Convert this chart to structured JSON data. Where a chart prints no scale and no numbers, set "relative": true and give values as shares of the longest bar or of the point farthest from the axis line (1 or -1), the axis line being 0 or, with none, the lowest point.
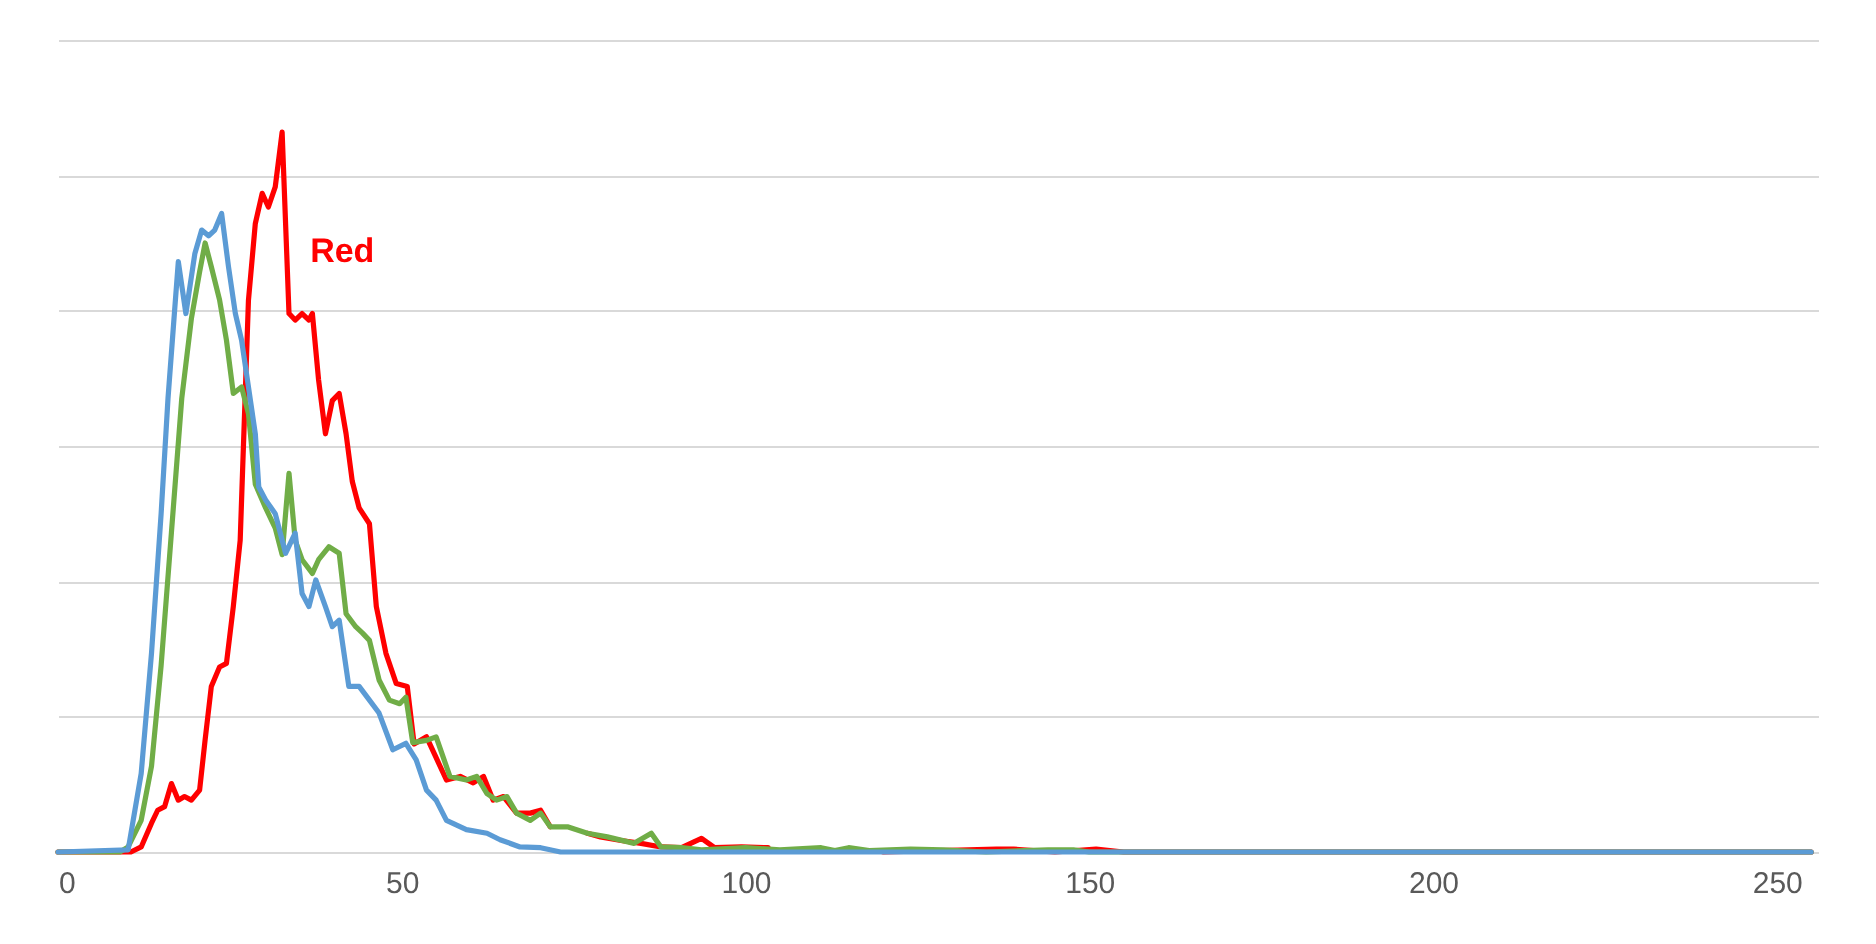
{
  "chart_data": {
    "type": "line",
    "relative": true,
    "xlim": [
      0,
      256
    ],
    "xticks": [
      0,
      50,
      100,
      150,
      200,
      250
    ],
    "grid": "y",
    "line_style": "solid",
    "marker": "none",
    "series": [
      {
        "name": "Red",
        "color": "#ff0000",
        "x": [
          0,
          10.6,
          12.1,
          13.6,
          14.5,
          15.5,
          16.5,
          17.5,
          18.4,
          19.4,
          20.6,
          21.4,
          22.3,
          23.5,
          24.5,
          25.5,
          26.5,
          27.2,
          27.7,
          28.7,
          29.7,
          30.6,
          31.6,
          32.6,
          33.6,
          34.5,
          35.5,
          36.5,
          37,
          37.9,
          38.9,
          39.9,
          40.9,
          41.9,
          42.8,
          43.8,
          45.3,
          46.3,
          47.7,
          49.2,
          50.8,
          51.8,
          53.6,
          55,
          56.5,
          58.5,
          60.4,
          61.9,
          63.3,
          64.8,
          66.7,
          68.7,
          70.2,
          71.6,
          74.1,
          77,
          78.9,
          81.9,
          84.8,
          87.7,
          90.7,
          93.6,
          95.5,
          99.4,
          103.3,
          110,
          116,
          120,
          136.5,
          139,
          145,
          151,
          155,
          255
        ],
        "values": [
          0,
          0,
          0.007,
          0.04,
          0.058,
          0.063,
          0.095,
          0.072,
          0.077,
          0.072,
          0.086,
          0.156,
          0.23,
          0.257,
          0.262,
          0.341,
          0.433,
          0.627,
          0.766,
          0.873,
          0.915,
          0.896,
          0.924,
          1,
          0.748,
          0.739,
          0.748,
          0.739,
          0.748,
          0.656,
          0.581,
          0.627,
          0.637,
          0.581,
          0.515,
          0.478,
          0.456,
          0.341,
          0.276,
          0.234,
          0.23,
          0.15,
          0.16,
          0.131,
          0.1,
          0.105,
          0.096,
          0.105,
          0.072,
          0.077,
          0.054,
          0.054,
          0.058,
          0.035,
          null,
          0.026,
          0.021,
          0.016,
          0.012,
          0.007,
          0.006,
          0.019,
          0.006,
          0.007,
          0.006,
          null,
          null,
          0,
          0.004,
          0.004,
          0,
          0.004,
          0,
          0
        ]
      },
      {
        "color": "#70ad47",
        "x": [
          0,
          9,
          10.2,
          12.1,
          13.6,
          15,
          16.5,
          18,
          19.4,
          20.6,
          21.4,
          22.3,
          23.5,
          24.5,
          25.5,
          26.7,
          27.7,
          28.7,
          30.2,
          31.6,
          32.6,
          33.6,
          34.5,
          35.5,
          37,
          37.9,
          39.4,
          40.9,
          41.9,
          43.3,
          44.3,
          45.3,
          46.7,
          48.2,
          49.7,
          50.6,
          51.6,
          53.6,
          55,
          57,
          59.4,
          60.9,
          62.4,
          63.8,
          65.3,
          66.7,
          68.7,
          70.2,
          71.6,
          74.1,
          77,
          79.9,
          83.8,
          86.3,
          87.7,
          90.7,
          93.6,
          100,
          105,
          111,
          113,
          115,
          118,
          124,
          128.7,
          135,
          144,
          147.7,
          150,
          255
        ],
        "values": [
          0,
          0,
          0.007,
          0.044,
          0.119,
          0.259,
          0.444,
          0.63,
          0.741,
          0.806,
          0.846,
          0.813,
          0.767,
          0.711,
          0.637,
          0.646,
          0.609,
          0.511,
          0.478,
          0.45,
          0.413,
          0.526,
          0.433,
          0.406,
          0.387,
          0.406,
          0.424,
          0.415,
          0.331,
          0.313,
          0.304,
          0.294,
          0.239,
          0.211,
          0.206,
          0.215,
          0.152,
          0.155,
          0.16,
          0.105,
          0.1,
          0.105,
          0.081,
          0.072,
          0.077,
          0.054,
          0.044,
          0.054,
          0.035,
          0.035,
          0.026,
          0.021,
          0.012,
          0.026,
          0.007,
          0.006,
          0.003,
          0.006,
          0.003,
          0.006,
          0.002,
          0.006,
          0.002,
          0.004,
          0.003,
          0,
          0.003,
          0.003,
          0,
          0
        ]
      },
      {
        "color": "#5b9bd5",
        "x": [
          0,
          10.2,
          12.1,
          13.6,
          15,
          16,
          17,
          17.5,
          18.6,
          19.9,
          20.9,
          21.9,
          22.8,
          23.8,
          24.8,
          25.8,
          26.7,
          27.7,
          28.7,
          29.2,
          30.2,
          31.6,
          33.1,
          34.5,
          35.5,
          36.5,
          37.5,
          38.9,
          39.9,
          40.9,
          42.3,
          43.8,
          45.3,
          46.7,
          48.7,
          50.6,
          52.1,
          53.6,
          55,
          56.5,
          59.4,
          62.4,
          64.3,
          67.2,
          70.2,
          73.1,
          255
        ],
        "values": [
          0,
          0.003,
          0.109,
          0.276,
          0.47,
          0.63,
          0.757,
          0.82,
          0.748,
          0.831,
          0.864,
          0.856,
          0.864,
          0.887,
          0.813,
          0.748,
          0.711,
          0.646,
          0.581,
          0.507,
          0.489,
          0.47,
          0.415,
          0.443,
          0.359,
          0.341,
          0.378,
          0.341,
          0.313,
          0.322,
          0.23,
          0.23,
          0.211,
          0.193,
          0.142,
          0.151,
          0.128,
          0.086,
          0.072,
          0.044,
          0.031,
          0.026,
          0.017,
          0.007,
          0.006,
          0,
          0
        ]
      }
    ]
  }
}
